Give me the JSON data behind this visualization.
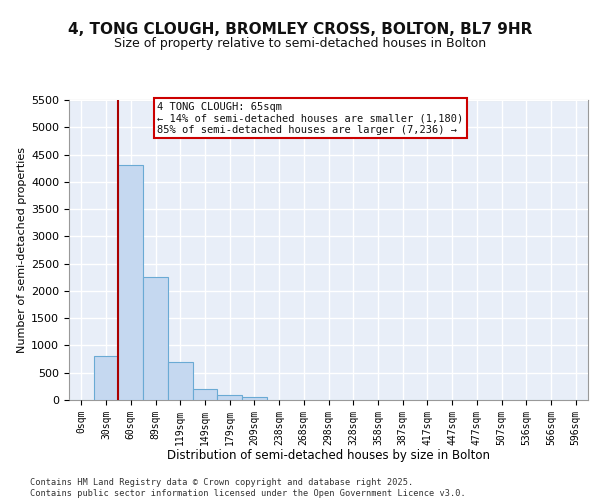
{
  "title_line1": "4, TONG CLOUGH, BROMLEY CROSS, BOLTON, BL7 9HR",
  "title_line2": "Size of property relative to semi-detached houses in Bolton",
  "xlabel": "Distribution of semi-detached houses by size in Bolton",
  "ylabel": "Number of semi-detached properties",
  "footer_line1": "Contains HM Land Registry data © Crown copyright and database right 2025.",
  "footer_line2": "Contains public sector information licensed under the Open Government Licence v3.0.",
  "bar_labels": [
    "0sqm",
    "30sqm",
    "60sqm",
    "89sqm",
    "119sqm",
    "149sqm",
    "179sqm",
    "209sqm",
    "238sqm",
    "268sqm",
    "298sqm",
    "328sqm",
    "358sqm",
    "387sqm",
    "417sqm",
    "447sqm",
    "477sqm",
    "507sqm",
    "536sqm",
    "566sqm",
    "596sqm"
  ],
  "bar_values": [
    0,
    800,
    4300,
    2250,
    700,
    200,
    100,
    50,
    0,
    0,
    0,
    0,
    0,
    0,
    0,
    0,
    0,
    0,
    0,
    0,
    0
  ],
  "bar_color": "#c5d8f0",
  "bar_edge_color": "#6aaad4",
  "vline_x_idx": 2,
  "vline_color": "#aa0000",
  "annotation_title": "4 TONG CLOUGH: 65sqm",
  "annotation_line2": "← 14% of semi-detached houses are smaller (1,180)",
  "annotation_line3": "85% of semi-detached houses are larger (7,236) →",
  "ylim": [
    0,
    5500
  ],
  "yticks": [
    0,
    500,
    1000,
    1500,
    2000,
    2500,
    3000,
    3500,
    4000,
    4500,
    5000,
    5500
  ],
  "background_color": "#e8eef8",
  "grid_color": "#ffffff",
  "title_fontsize": 11,
  "subtitle_fontsize": 9,
  "bar_width": 1.0
}
